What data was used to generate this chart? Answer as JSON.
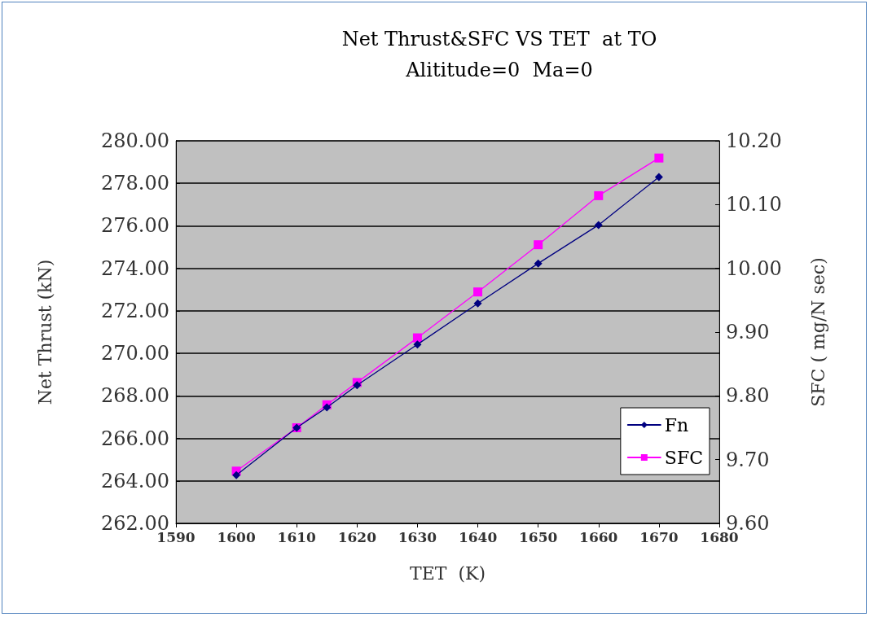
{
  "chart_data": {
    "type": "line",
    "title": "Net Thrust&SFC VS TET  at TO",
    "subtitle": "Alititude=0  Ma=0",
    "xlabel": "TET  (K)",
    "ylabel": "Net Thrust (kN)",
    "y2label": "SFC ( mg/N sec)",
    "x": [
      1600,
      1610,
      1615,
      1620,
      1630,
      1640,
      1650,
      1660,
      1670
    ],
    "series": [
      {
        "name": "Fn",
        "color": "#000080",
        "marker": "diamond",
        "values": [
          264.27,
          266.5,
          267.46,
          268.5,
          270.42,
          272.35,
          274.23,
          276.04,
          278.3
        ]
      },
      {
        "name": "SFC",
        "color": "#ff00ff",
        "marker": "square",
        "axis": "y2",
        "values": [
          9.682,
          9.75,
          9.786,
          9.821,
          9.891,
          9.963,
          10.037,
          10.114,
          10.173
        ]
      }
    ],
    "xlim": [
      1590,
      1680
    ],
    "xticks": [
      1590,
      1600,
      1610,
      1620,
      1630,
      1640,
      1650,
      1660,
      1670,
      1680
    ],
    "ylim": [
      262,
      280
    ],
    "yticks": [
      {
        "value": 262,
        "label": "262.00"
      },
      {
        "value": 264,
        "label": "264.00"
      },
      {
        "value": 266,
        "label": "266.00"
      },
      {
        "value": 268,
        "label": "268.00"
      },
      {
        "value": 270,
        "label": "270.00"
      },
      {
        "value": 272,
        "label": "272.00"
      },
      {
        "value": 274,
        "label": "274.00"
      },
      {
        "value": 276,
        "label": "276.00"
      },
      {
        "value": 278,
        "label": "278.00"
      },
      {
        "value": 280,
        "label": "280.00"
      }
    ],
    "y2lim": [
      9.6,
      10.2
    ],
    "y2ticks": [
      {
        "value": 9.6,
        "label": "9.60"
      },
      {
        "value": 9.7,
        "label": "9.70"
      },
      {
        "value": 9.8,
        "label": "9.80"
      },
      {
        "value": 9.9,
        "label": "9.90"
      },
      {
        "value": 10.0,
        "label": "10.00"
      },
      {
        "value": 10.1,
        "label": "10.10"
      },
      {
        "value": 10.2,
        "label": "10.20"
      }
    ],
    "grid": "y",
    "legend": "bottom right",
    "line_style": "solid"
  }
}
